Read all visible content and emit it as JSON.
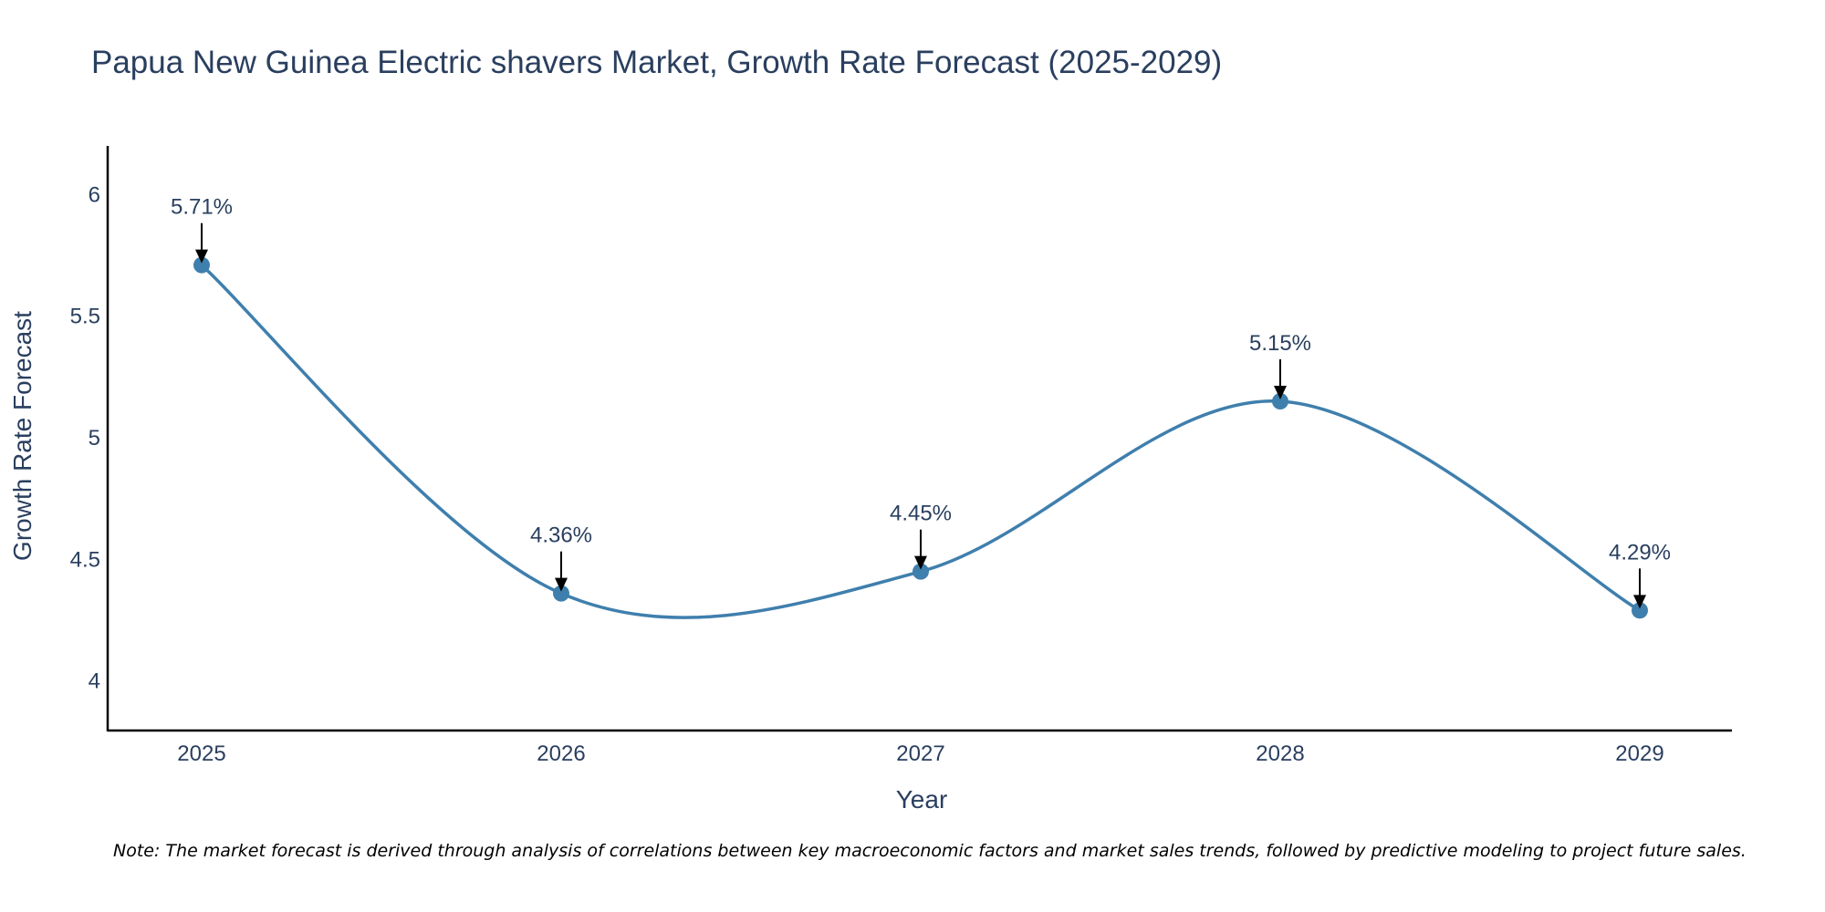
{
  "chart_data": {
    "type": "line",
    "title": "Papua New Guinea Electric shavers Market, Growth Rate Forecast (2025-2029)",
    "xlabel": "Year",
    "ylabel": "Growth Rate Forecast",
    "categories": [
      "2025",
      "2026",
      "2027",
      "2028",
      "2029"
    ],
    "values": [
      5.71,
      4.36,
      4.45,
      5.15,
      4.29
    ],
    "data_labels": [
      "5.71%",
      "4.36%",
      "4.45%",
      "5.15%",
      "4.29%"
    ],
    "ylim": [
      3.8,
      6.2
    ],
    "yticks": [
      4,
      4.5,
      5,
      5.5,
      6
    ],
    "ytick_labels": [
      "4",
      "4.5",
      "5",
      "5.5",
      "6"
    ],
    "line_shape": "spline",
    "grid": false,
    "series_color": "#3f7fad",
    "note": "Note: The market forecast is derived through analysis of correlations between key macroeconomic factors and market sales trends, followed by predictive modeling to project future sales."
  }
}
